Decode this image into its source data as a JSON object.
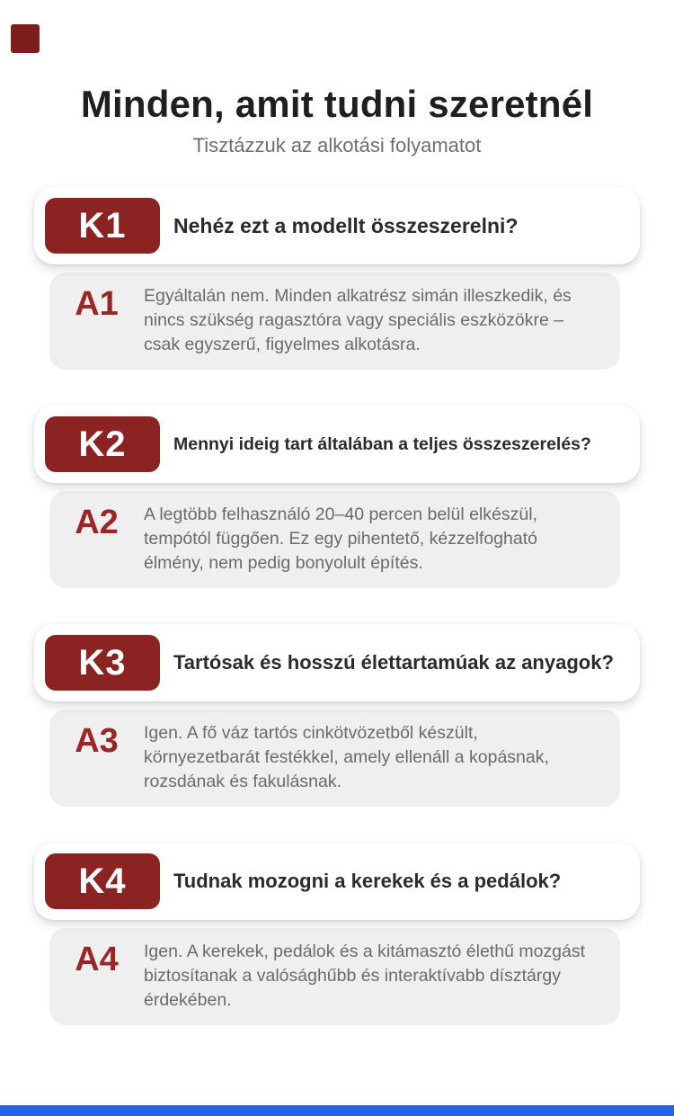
{
  "page": {
    "title": "Minden, amit tudni szeretnél",
    "subtitle": "Tisztázzuk az alkotási folyamatot"
  },
  "colors": {
    "accent_red": "#8B2323",
    "label_red": "#9A2727",
    "question_text": "#2B2B2B",
    "answer_text": "#6B6B6B",
    "answer_bg": "#EFEFEF",
    "title_color": "#1F1F1F",
    "subtitle_color": "#6E6E6E",
    "corner_red": "#7E1D1D",
    "bottom_blue": "#2563EB"
  },
  "decorations": {
    "corner_square": "corner-accent-square",
    "bottom_bar": "bottom-accent-bar"
  },
  "faq": [
    {
      "q_label": "K1",
      "question": "Nehéz ezt a modellt összeszerelni?",
      "a_label": "A1",
      "answer": "Egyáltalán nem. Minden alkatrész simán illeszkedik, és nincs szükség ragasztóra vagy speciális eszközökre – csak egyszerű, figyelmes alkotásra."
    },
    {
      "q_label": "K2",
      "question": "Mennyi ideig tart általában a teljes összeszerelés?",
      "a_label": "A2",
      "answer": "A legtöbb felhasználó 20–40 percen belül elkészül, tempótól függően. Ez egy pihentető, kézzelfogható élmény, nem pedig bonyolult építés."
    },
    {
      "q_label": "K3",
      "question": "Tartósak és hosszú élettartamúak az anyagok?",
      "a_label": "A3",
      "answer": "Igen. A fő váz tartós cinkötvözetből készült, környezetbarát festékkel, amely ellenáll a kopásnak, rozsdának és fakulásnak."
    },
    {
      "q_label": "K4",
      "question": "Tudnak mozogni a kerekek és a pedálok?",
      "a_label": "A4",
      "answer": "Igen. A kerekek, pedálok és a kitámasztó élethű mozgást biztosítanak a valósághűbb és interaktívabb dísztárgy érdekében."
    }
  ]
}
